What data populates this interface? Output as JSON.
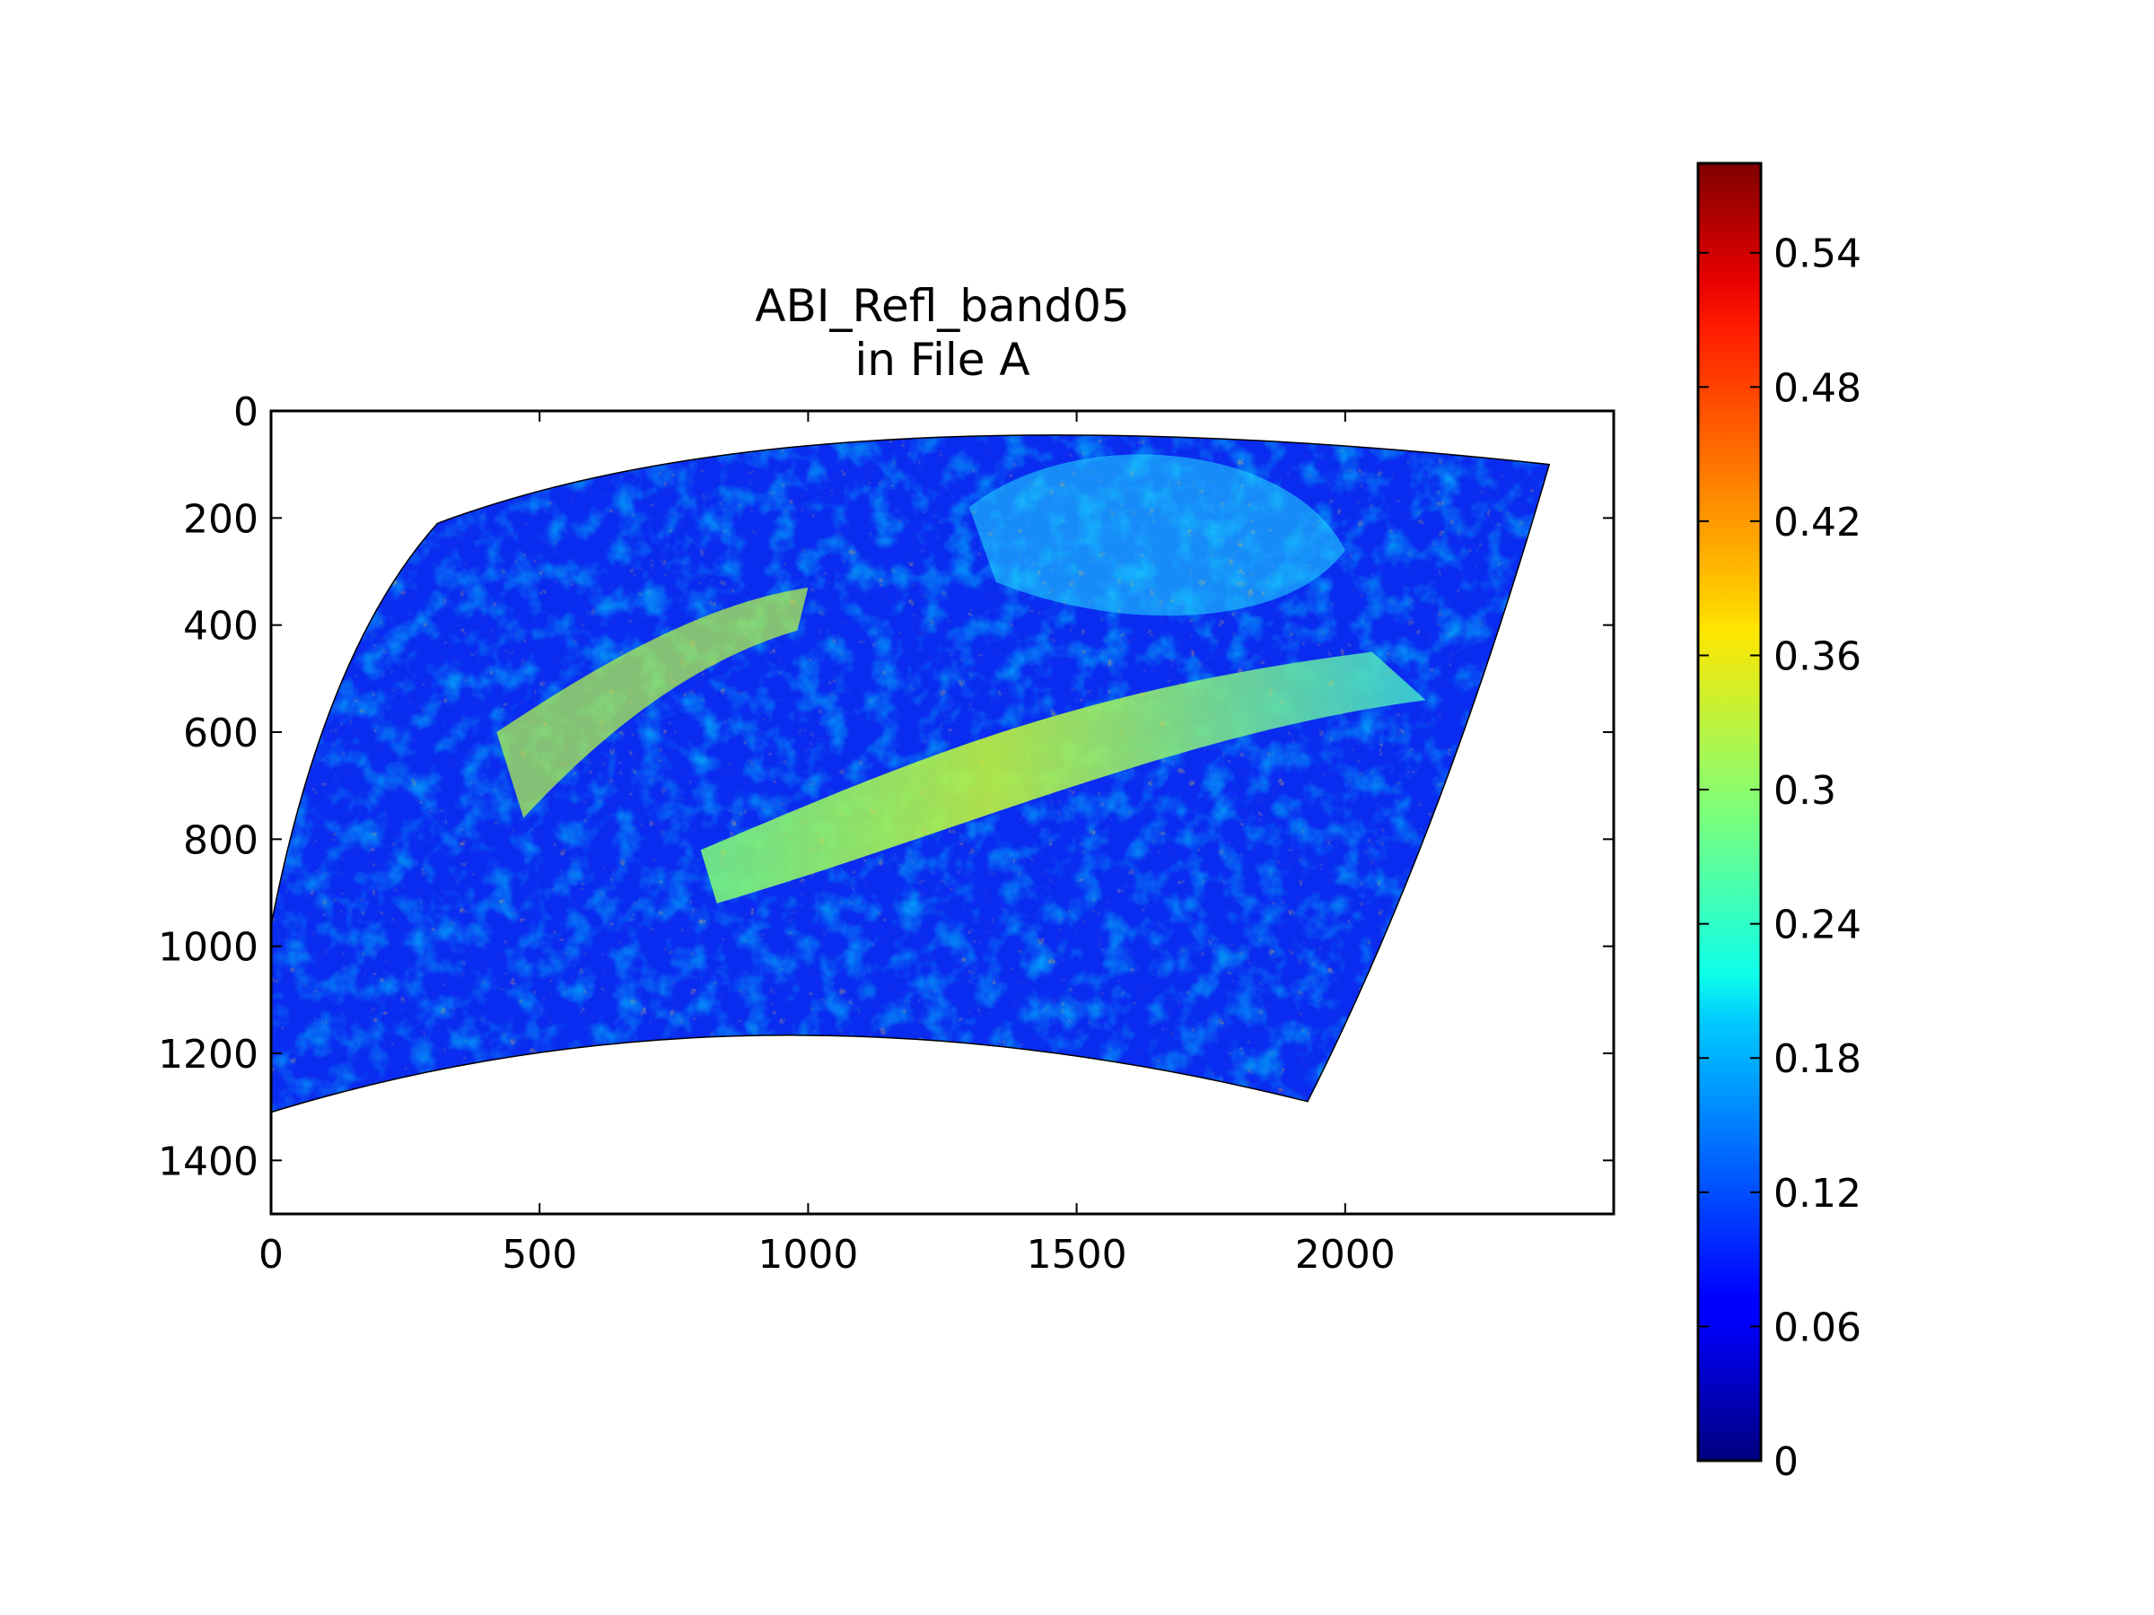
{
  "chart_data": {
    "type": "heatmap",
    "title": "ABI_Refl_band05",
    "subtitle": "in File A",
    "xlabel": "",
    "ylabel": "",
    "xlim": [
      0,
      2500
    ],
    "ylim": [
      1500,
      0
    ],
    "x_ticks": [
      0,
      500,
      1000,
      1500,
      2000
    ],
    "y_ticks": [
      0,
      200,
      400,
      600,
      800,
      1000,
      1200,
      1400
    ],
    "colormap": "jet",
    "colorbar": {
      "vmin": 0,
      "vmax": 0.58,
      "ticks": [
        0,
        0.06,
        0.12,
        0.18,
        0.24,
        0.3,
        0.36,
        0.42,
        0.48,
        0.54
      ],
      "tick_labels": [
        "0",
        "0.06",
        "0.12",
        "0.18",
        "0.24",
        "0.3",
        "0.36",
        "0.42",
        "0.48",
        "0.54"
      ]
    },
    "image_extent_data": {
      "top_left": [
        310,
        210
      ],
      "top_middle": [
        1000,
        0
      ],
      "top_right": [
        2380,
        100
      ],
      "bottom_right": [
        1930,
        1290
      ],
      "bottom_middle": [
        900,
        1150
      ],
      "bottom_left": [
        0,
        1310
      ]
    },
    "grid": false
  }
}
